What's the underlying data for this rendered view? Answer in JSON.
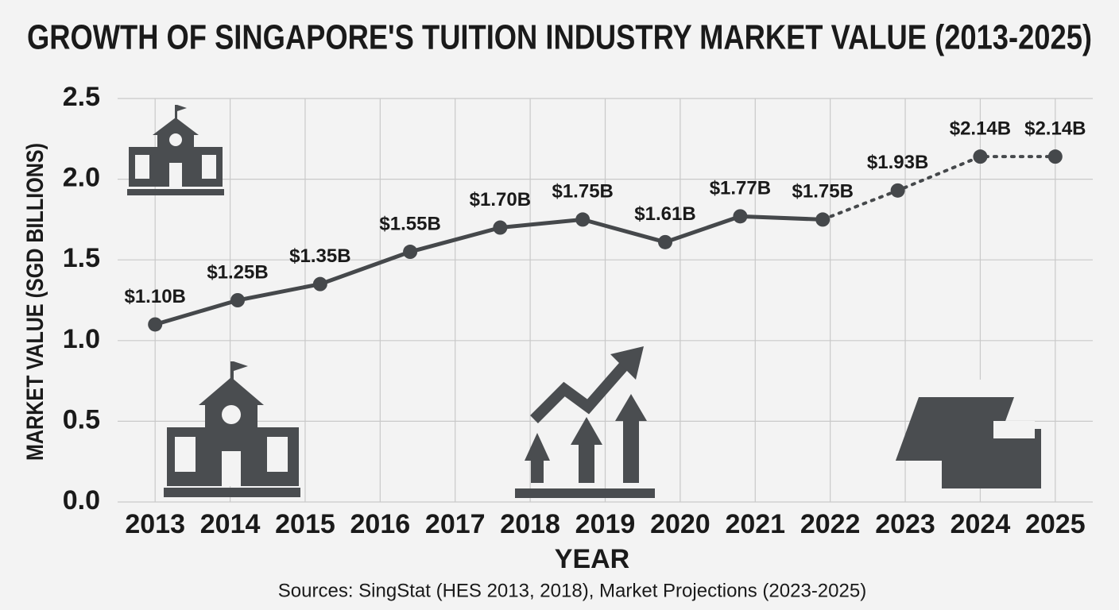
{
  "chart_data": {
    "type": "line",
    "title": "GROWTH OF SINGAPORE'S TUITION INDUSTRY MARKET VALUE (2013-2025)",
    "x_label": "YEAR",
    "y_label": "MARKET VALUE (SGD BILLIONS)",
    "source": "Sources: SingStat (HES 2013, 2018), Market Projections (2023-2025)",
    "series": [
      {
        "color": "#45484b",
        "x": [
          2013,
          2014.1,
          2015.2,
          2016.4,
          2017.6,
          2018.7,
          2019.8,
          2020.8,
          2021.9,
          2022.9,
          2024,
          2025
        ],
        "values": [
          1.1,
          1.25,
          1.35,
          1.55,
          1.7,
          1.75,
          1.61,
          1.77,
          1.75,
          1.93,
          2.14,
          2.14
        ],
        "value_labels": [
          "$1.10B",
          "$1.25B",
          "$1.35B",
          "$1.55B",
          "$1.70B",
          "$1.75B",
          "$1.61B",
          "$1.77B",
          "$1.75B",
          "$1.93B",
          "$2.14B",
          "$2.14B"
        ],
        "dotted_from_index": 8
      }
    ],
    "xlim": [
      2012.5,
      2025.5
    ],
    "xticks": [
      2013,
      2014,
      2015,
      2016,
      2017,
      2018,
      2019,
      2020,
      2021,
      2022,
      2023,
      2024,
      2025
    ],
    "ylim": [
      0,
      2.5
    ],
    "yticks": [
      {
        "value": 0,
        "label": "0.0"
      },
      0.5,
      {
        "value": 1,
        "label": "1.0"
      },
      1.5,
      {
        "value": 2,
        "label": "2.0"
      },
      2.5
    ],
    "grid": true
  }
}
